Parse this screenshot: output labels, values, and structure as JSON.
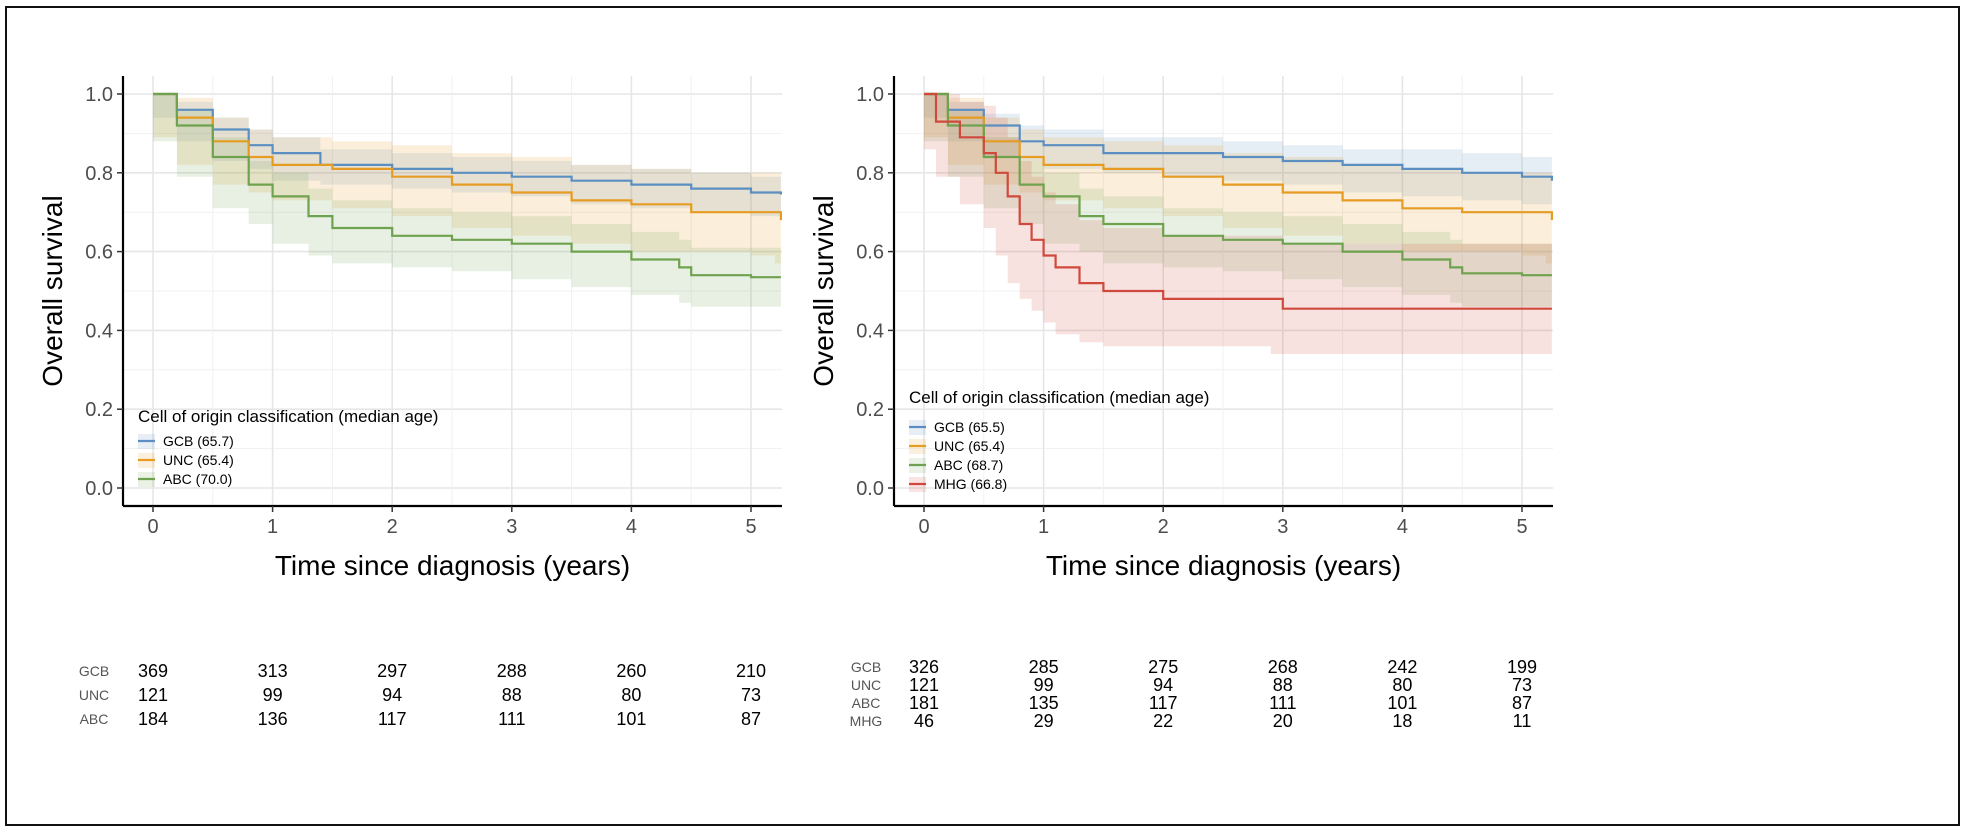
{
  "chart_data": [
    {
      "type": "line",
      "xlabel": "Time since diagnosis (years)",
      "ylabel": "Overall survival",
      "xlim": [
        -0.25,
        5.25
      ],
      "ylim": [
        -0.04,
        1.04
      ],
      "x_ticks": [
        "0",
        "1",
        "2",
        "3",
        "4",
        "5"
      ],
      "y_ticks": [
        "0.0",
        "0.2",
        "0.4",
        "0.6",
        "0.8",
        "1.0"
      ],
      "grid": true,
      "legend_title": "Cell of origin classification (median age)",
      "legend_position": "bottom-left",
      "series": [
        {
          "name": "GCB (65.7)",
          "group": "GCB",
          "color": "#5b8fc2",
          "x": [
            0,
            0.2,
            0.5,
            0.8,
            1.0,
            1.4,
            2.0,
            2.5,
            3.0,
            3.5,
            4.0,
            4.5,
            5.0,
            5.25
          ],
          "y": [
            1.0,
            0.96,
            0.91,
            0.87,
            0.85,
            0.82,
            0.81,
            0.8,
            0.79,
            0.78,
            0.77,
            0.76,
            0.75,
            0.745
          ],
          "lower": [
            1.0,
            0.94,
            0.88,
            0.83,
            0.81,
            0.78,
            0.77,
            0.76,
            0.75,
            0.74,
            0.72,
            0.71,
            0.7,
            0.69
          ],
          "upper": [
            1.0,
            0.98,
            0.94,
            0.91,
            0.89,
            0.86,
            0.85,
            0.84,
            0.83,
            0.82,
            0.81,
            0.8,
            0.79,
            0.79
          ]
        },
        {
          "name": "UNC (65.4)",
          "group": "UNC",
          "color": "#e69b22",
          "x": [
            0,
            0.2,
            0.5,
            0.8,
            1.0,
            1.5,
            2.0,
            2.5,
            3.0,
            3.5,
            4.0,
            4.5,
            5.0,
            5.2,
            5.25
          ],
          "y": [
            1.0,
            0.94,
            0.88,
            0.84,
            0.82,
            0.81,
            0.79,
            0.77,
            0.75,
            0.73,
            0.72,
            0.7,
            0.7,
            0.7,
            0.68
          ],
          "lower": [
            1.0,
            0.89,
            0.82,
            0.77,
            0.75,
            0.73,
            0.71,
            0.69,
            0.66,
            0.64,
            0.62,
            0.6,
            0.6,
            0.59,
            0.57
          ],
          "upper": [
            1.0,
            0.99,
            0.94,
            0.91,
            0.89,
            0.88,
            0.87,
            0.85,
            0.84,
            0.82,
            0.81,
            0.8,
            0.8,
            0.8,
            0.79
          ]
        },
        {
          "name": "ABC (70.0)",
          "group": "ABC",
          "color": "#6fa24e",
          "x": [
            0,
            0.2,
            0.5,
            0.8,
            1.0,
            1.3,
            1.5,
            2.0,
            2.5,
            3.0,
            3.5,
            4.0,
            4.4,
            4.5,
            5.0,
            5.25
          ],
          "y": [
            1.0,
            0.92,
            0.84,
            0.77,
            0.74,
            0.69,
            0.66,
            0.64,
            0.63,
            0.62,
            0.6,
            0.58,
            0.56,
            0.54,
            0.535,
            0.535
          ],
          "lower": [
            1.0,
            0.88,
            0.79,
            0.71,
            0.67,
            0.62,
            0.59,
            0.57,
            0.56,
            0.55,
            0.53,
            0.51,
            0.49,
            0.47,
            0.46,
            0.46
          ],
          "upper": [
            1.0,
            0.96,
            0.89,
            0.83,
            0.8,
            0.76,
            0.73,
            0.71,
            0.7,
            0.69,
            0.67,
            0.65,
            0.63,
            0.61,
            0.61,
            0.61
          ]
        }
      ],
      "risk_table": {
        "times": [
          "0",
          "1",
          "2",
          "3",
          "4",
          "5"
        ],
        "rows": [
          {
            "group": "GCB",
            "values": [
              "369",
              "313",
              "297",
              "288",
              "260",
              "210"
            ]
          },
          {
            "group": "UNC",
            "values": [
              "121",
              "99",
              "94",
              "88",
              "80",
              "73"
            ]
          },
          {
            "group": "ABC",
            "values": [
              "184",
              "136",
              "117",
              "111",
              "101",
              "87"
            ]
          }
        ]
      }
    },
    {
      "type": "line",
      "xlabel": "Time since diagnosis (years)",
      "ylabel": "Overall survival",
      "xlim": [
        -0.25,
        5.25
      ],
      "ylim": [
        -0.04,
        1.04
      ],
      "x_ticks": [
        "0",
        "1",
        "2",
        "3",
        "4",
        "5"
      ],
      "y_ticks": [
        "0.0",
        "0.2",
        "0.4",
        "0.6",
        "0.8",
        "1.0"
      ],
      "grid": true,
      "legend_title": "Cell of origin classification (median age)",
      "legend_position": "bottom-left",
      "series": [
        {
          "name": "GCB (65.5)",
          "group": "GCB",
          "color": "#5b8fc2",
          "x": [
            0,
            0.2,
            0.5,
            0.8,
            1.0,
            1.5,
            2.0,
            2.5,
            3.0,
            3.5,
            4.0,
            4.5,
            5.0,
            5.25
          ],
          "y": [
            1.0,
            0.96,
            0.92,
            0.88,
            0.87,
            0.85,
            0.85,
            0.84,
            0.83,
            0.82,
            0.81,
            0.8,
            0.79,
            0.78
          ],
          "lower": [
            1.0,
            0.94,
            0.88,
            0.84,
            0.83,
            0.81,
            0.8,
            0.79,
            0.78,
            0.77,
            0.75,
            0.74,
            0.73,
            0.72
          ],
          "upper": [
            1.0,
            0.98,
            0.95,
            0.92,
            0.91,
            0.89,
            0.89,
            0.88,
            0.87,
            0.86,
            0.86,
            0.85,
            0.84,
            0.84
          ]
        },
        {
          "name": "UNC (65.4)",
          "group": "UNC",
          "color": "#e69b22",
          "x": [
            0,
            0.2,
            0.5,
            0.8,
            1.0,
            1.5,
            2.0,
            2.5,
            3.0,
            3.5,
            4.0,
            4.5,
            5.0,
            5.2,
            5.25
          ],
          "y": [
            1.0,
            0.94,
            0.88,
            0.84,
            0.82,
            0.81,
            0.79,
            0.77,
            0.75,
            0.73,
            0.71,
            0.7,
            0.7,
            0.7,
            0.68
          ],
          "lower": [
            1.0,
            0.89,
            0.82,
            0.77,
            0.75,
            0.73,
            0.71,
            0.69,
            0.66,
            0.64,
            0.62,
            0.6,
            0.6,
            0.59,
            0.57
          ],
          "upper": [
            1.0,
            0.99,
            0.94,
            0.91,
            0.89,
            0.88,
            0.87,
            0.85,
            0.84,
            0.82,
            0.81,
            0.8,
            0.8,
            0.8,
            0.79
          ]
        },
        {
          "name": "ABC (68.7)",
          "group": "ABC",
          "color": "#6fa24e",
          "x": [
            0,
            0.2,
            0.5,
            0.8,
            1.0,
            1.3,
            1.5,
            2.0,
            2.5,
            3.0,
            3.5,
            4.0,
            4.4,
            4.5,
            5.0,
            5.25
          ],
          "y": [
            1.0,
            0.92,
            0.84,
            0.77,
            0.74,
            0.69,
            0.67,
            0.64,
            0.63,
            0.62,
            0.6,
            0.58,
            0.56,
            0.545,
            0.54,
            0.54
          ],
          "lower": [
            1.0,
            0.88,
            0.79,
            0.71,
            0.67,
            0.62,
            0.6,
            0.57,
            0.56,
            0.55,
            0.53,
            0.51,
            0.49,
            0.47,
            0.46,
            0.46
          ],
          "upper": [
            1.0,
            0.96,
            0.89,
            0.83,
            0.8,
            0.76,
            0.74,
            0.71,
            0.7,
            0.69,
            0.67,
            0.65,
            0.63,
            0.62,
            0.62,
            0.62
          ]
        },
        {
          "name": "MHG (66.8)",
          "group": "MHG",
          "color": "#d0493d",
          "x": [
            0,
            0.1,
            0.3,
            0.5,
            0.6,
            0.7,
            0.8,
            0.9,
            1.0,
            1.1,
            1.3,
            1.5,
            2.0,
            2.5,
            2.9,
            3.0,
            5.25
          ],
          "y": [
            1.0,
            0.93,
            0.89,
            0.85,
            0.8,
            0.74,
            0.67,
            0.63,
            0.59,
            0.56,
            0.52,
            0.5,
            0.48,
            0.48,
            0.48,
            0.455,
            0.455
          ],
          "lower": [
            1.0,
            0.86,
            0.79,
            0.72,
            0.66,
            0.59,
            0.52,
            0.48,
            0.45,
            0.42,
            0.39,
            0.37,
            0.36,
            0.36,
            0.36,
            0.34,
            0.34
          ],
          "upper": [
            1.0,
            1.0,
            0.98,
            0.97,
            0.94,
            0.89,
            0.83,
            0.79,
            0.75,
            0.72,
            0.68,
            0.66,
            0.64,
            0.64,
            0.64,
            0.62,
            0.62
          ]
        }
      ],
      "risk_table": {
        "times": [
          "0",
          "1",
          "2",
          "3",
          "4",
          "5"
        ],
        "rows": [
          {
            "group": "GCB",
            "values": [
              "326",
              "285",
              "275",
              "268",
              "242",
              "199"
            ]
          },
          {
            "group": "UNC",
            "values": [
              "121",
              "99",
              "94",
              "88",
              "80",
              "73"
            ]
          },
          {
            "group": "ABC",
            "values": [
              "181",
              "135",
              "117",
              "111",
              "101",
              "87"
            ]
          },
          {
            "group": "MHG",
            "values": [
              "46",
              "29",
              "22",
              "20",
              "18",
              "11"
            ]
          }
        ]
      }
    }
  ]
}
